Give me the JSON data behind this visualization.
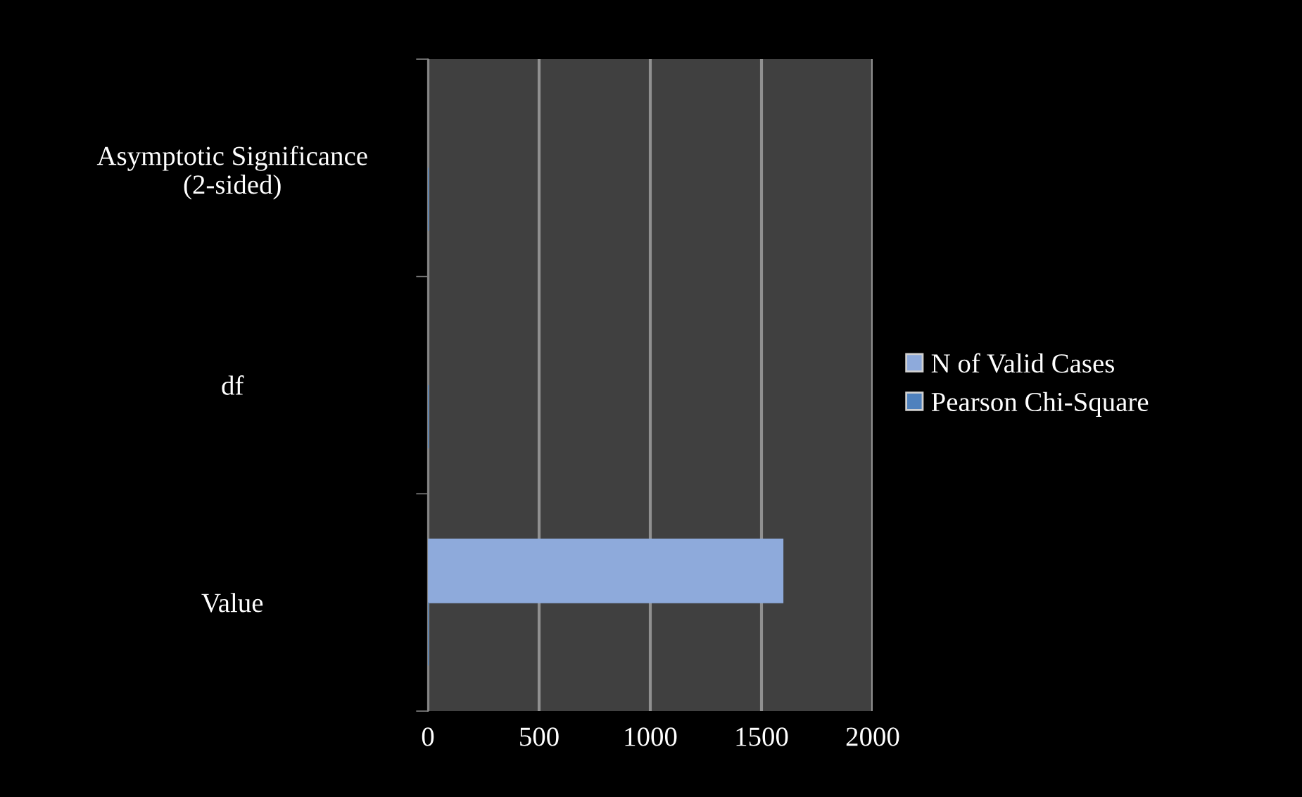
{
  "chart_data": {
    "type": "bar",
    "orientation": "horizontal",
    "categories": [
      "Asymptotic Significance\n(2-sided)",
      "df",
      "Value"
    ],
    "series": [
      {
        "name": "N of Valid Cases",
        "color": "#8eaadb",
        "values": [
          null,
          null,
          1595
        ]
      },
      {
        "name": "Pearson Chi-Square",
        "color": "#4f81bd",
        "values": [
          0,
          0,
          0
        ]
      }
    ],
    "xlim": [
      0,
      2000
    ],
    "xticks": [
      0,
      500,
      1000,
      1500,
      2000
    ],
    "grid": "x",
    "legend": "right"
  }
}
